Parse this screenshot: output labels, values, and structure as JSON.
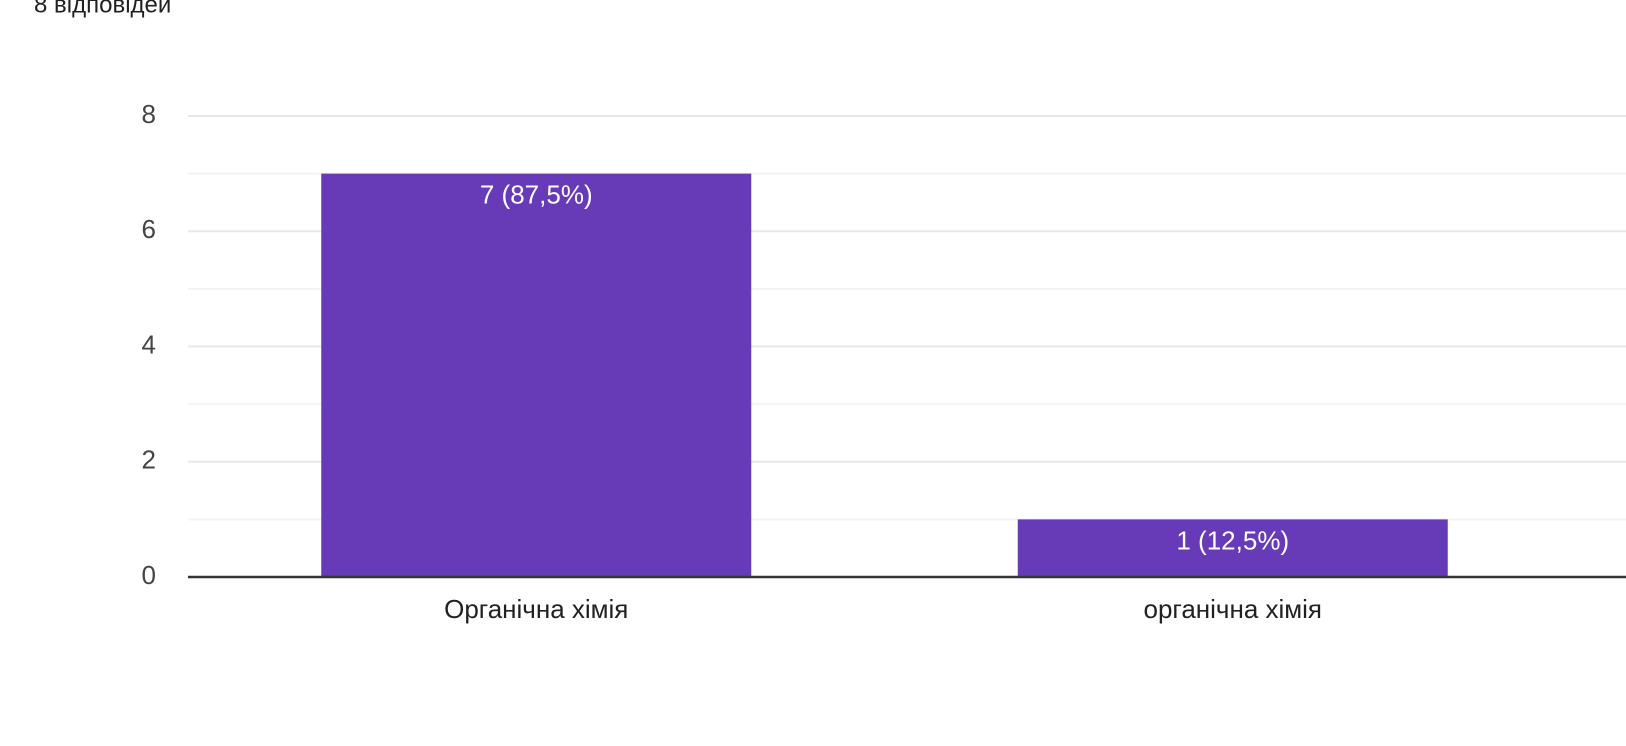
{
  "chart_data": {
    "type": "bar",
    "subtitle": "8 відповідей",
    "categories": [
      "Органічна хімія",
      "органічна хімія"
    ],
    "values": [
      7,
      1
    ],
    "value_labels": [
      "7 (87,5%)",
      "1 (12,5%)"
    ],
    "color": "#673ab7",
    "ylim": [
      0,
      8
    ],
    "yticks": [
      0,
      2,
      4,
      6,
      8
    ],
    "minor_yticks": [
      1,
      3,
      5,
      7
    ],
    "grid": true
  }
}
